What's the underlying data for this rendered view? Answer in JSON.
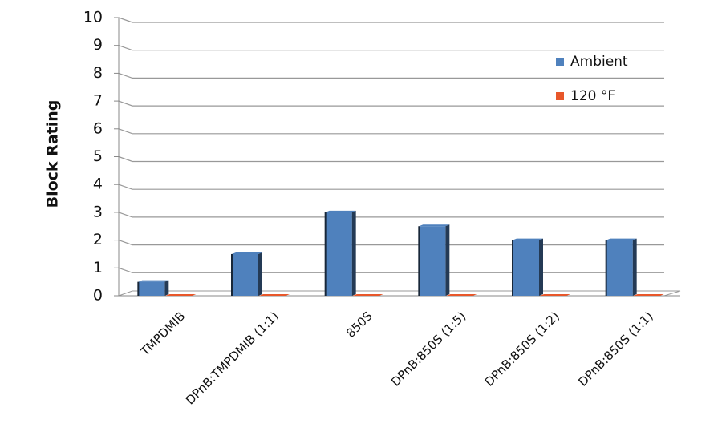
{
  "chart_data": {
    "type": "bar3d",
    "y_label": "Block Rating",
    "categories": [
      "TMPDMIB",
      "DPnB:TMPDMIB (1:1)",
      "850S",
      "DPnB:850S (1:5)",
      "DPnB:850S (1:2)",
      "DPnB:850S (1:1)"
    ],
    "series": [
      {
        "name": "Ambient",
        "color": "#4f81bd",
        "values": [
          0.5,
          1.5,
          3,
          2.5,
          2,
          2
        ]
      },
      {
        "name": "120 °F",
        "color": "#e8572a",
        "values": [
          0,
          0,
          0,
          0,
          0,
          0
        ]
      }
    ],
    "ylim": [
      0,
      10
    ],
    "yticks": [
      0,
      1,
      2,
      3,
      4,
      5,
      6,
      7,
      8,
      9,
      10
    ],
    "grid": true,
    "legend": "top-right"
  }
}
